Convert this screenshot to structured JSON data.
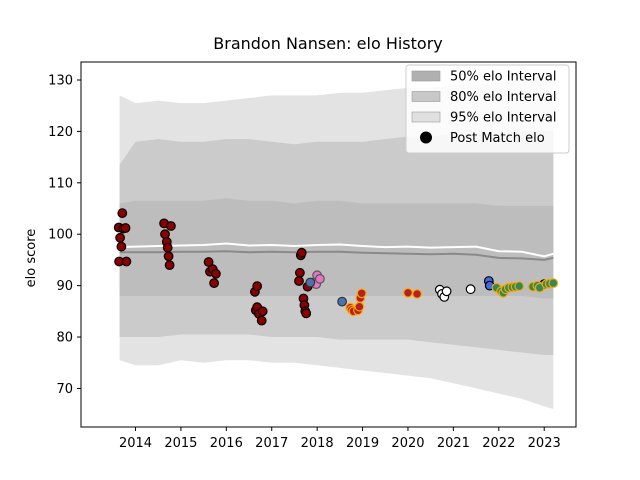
{
  "chart_data": {
    "type": "scatter",
    "title": "Brandon Nansen: elo History",
    "xlabel": "",
    "ylabel": "elo score",
    "xlim": [
      2012.8,
      2023.7
    ],
    "ylim": [
      62.5,
      133.5
    ],
    "x_ticks": [
      2014,
      2015,
      2016,
      2017,
      2018,
      2019,
      2020,
      2021,
      2022,
      2023
    ],
    "y_ticks": [
      70,
      80,
      90,
      100,
      110,
      120,
      130
    ],
    "grid": false,
    "legend_position": "top-right",
    "legend": [
      {
        "label": "50% elo Interval",
        "kind": "band",
        "color": "#b0b0b0"
      },
      {
        "label": "80% elo Interval",
        "kind": "band",
        "color": "#c8c8c8"
      },
      {
        "label": "95% elo Interval",
        "kind": "band",
        "color": "#e0e0e0"
      },
      {
        "label": "Post Match elo",
        "kind": "marker",
        "color": "#000000"
      }
    ],
    "colors": {
      "band95": "#e3e3e3",
      "band80": "#cbcbcb",
      "band50": "#bdbdbd",
      "median_line": "#8a8a8a",
      "mean_line": "#ffffff"
    },
    "intervals": {
      "x": [
        2013.65,
        2014.0,
        2014.5,
        2015.0,
        2015.5,
        2016.0,
        2016.5,
        2017.0,
        2017.5,
        2018.0,
        2018.5,
        2019.0,
        2019.5,
        2020.0,
        2020.5,
        2021.0,
        2021.5,
        2022.0,
        2022.5,
        2023.0,
        2023.2
      ],
      "p95_low": [
        75.5,
        74.5,
        74.5,
        75.5,
        75.0,
        75.5,
        75.5,
        75.0,
        75.0,
        74.5,
        74.0,
        73.5,
        73.0,
        72.5,
        72.0,
        71.0,
        70.0,
        69.0,
        68.0,
        66.5,
        66.0
      ],
      "p80_low": [
        80.0,
        80.0,
        80.0,
        80.5,
        80.5,
        80.5,
        80.5,
        80.0,
        80.0,
        80.0,
        79.5,
        79.5,
        79.5,
        79.5,
        79.0,
        78.5,
        78.0,
        77.5,
        77.0,
        76.5,
        76.5
      ],
      "p50_low": [
        88.0,
        88.0,
        88.0,
        88.0,
        88.0,
        88.0,
        88.0,
        88.0,
        88.0,
        88.0,
        88.0,
        88.0,
        88.0,
        88.0,
        88.0,
        88.0,
        88.0,
        88.0,
        88.0,
        87.5,
        87.5
      ],
      "median": [
        96.5,
        96.5,
        96.5,
        96.6,
        96.6,
        96.7,
        96.5,
        96.6,
        96.5,
        96.6,
        96.6,
        96.4,
        96.3,
        96.2,
        96.1,
        96.2,
        96.0,
        95.4,
        95.3,
        95.0,
        95.4
      ],
      "mean": [
        97.5,
        97.6,
        97.7,
        97.8,
        97.9,
        98.2,
        97.8,
        97.9,
        97.7,
        97.9,
        98.0,
        97.7,
        97.5,
        97.6,
        97.4,
        97.5,
        97.6,
        96.7,
        96.6,
        95.7,
        96.2
      ],
      "p50_high": [
        106.0,
        106.5,
        106.5,
        106.5,
        106.5,
        107.0,
        106.5,
        106.5,
        106.0,
        106.5,
        106.5,
        106.0,
        106.0,
        106.0,
        106.0,
        106.0,
        106.0,
        105.5,
        105.5,
        105.5,
        105.5
      ],
      "p80_high": [
        113.5,
        118.0,
        118.5,
        118.0,
        118.0,
        118.5,
        118.5,
        118.0,
        117.5,
        118.0,
        118.0,
        118.0,
        118.5,
        119.0,
        119.0,
        119.5,
        119.5,
        119.5,
        120.0,
        120.0,
        120.0
      ],
      "p95_high": [
        127.0,
        125.5,
        126.0,
        125.5,
        125.5,
        126.0,
        126.5,
        127.0,
        127.0,
        127.0,
        127.5,
        127.5,
        128.0,
        128.5,
        128.5,
        129.0,
        129.0,
        129.5,
        130.0,
        130.5,
        130.5
      ]
    },
    "series": [
      {
        "name": "Post Match elo",
        "face": "#8b0000",
        "edge": "#000000",
        "points": [
          [
            2013.63,
            101.3
          ],
          [
            2013.66,
            99.3
          ],
          [
            2013.69,
            97.6
          ],
          [
            2013.71,
            104.1
          ],
          [
            2013.73,
            101.1
          ],
          [
            2013.78,
            101.2
          ],
          [
            2013.64,
            94.7
          ],
          [
            2013.8,
            94.7
          ],
          [
            2014.63,
            102.1
          ],
          [
            2014.65,
            100.0
          ],
          [
            2014.69,
            98.5
          ],
          [
            2014.71,
            97.4
          ],
          [
            2014.73,
            95.7
          ],
          [
            2014.75,
            94.0
          ],
          [
            2014.78,
            101.6
          ],
          [
            2015.61,
            94.6
          ],
          [
            2015.64,
            92.7
          ],
          [
            2015.7,
            93.2
          ],
          [
            2015.73,
            90.5
          ],
          [
            2015.77,
            92.3
          ],
          [
            2016.63,
            88.8
          ],
          [
            2016.68,
            89.9
          ],
          [
            2016.65,
            85.2
          ],
          [
            2016.68,
            85.8
          ],
          [
            2016.72,
            84.5
          ],
          [
            2016.78,
            83.2
          ],
          [
            2016.8,
            85.0
          ],
          [
            2017.6,
            90.9
          ],
          [
            2017.62,
            92.5
          ],
          [
            2017.64,
            95.9
          ],
          [
            2017.66,
            96.4
          ],
          [
            2017.7,
            87.5
          ],
          [
            2017.72,
            86.2
          ],
          [
            2017.74,
            85.0
          ],
          [
            2017.76,
            84.6
          ],
          [
            2017.79,
            89.8
          ]
        ]
      },
      {
        "name": "",
        "face": "#e377c2",
        "edge": "#555555",
        "points": [
          [
            2017.92,
            90.6
          ],
          [
            2017.98,
            90.3
          ],
          [
            2018.0,
            92.0
          ],
          [
            2018.06,
            91.3
          ]
        ]
      },
      {
        "name": "",
        "face": "#4c72b0",
        "edge": "#333333",
        "points": [
          [
            2017.85,
            90.6
          ],
          [
            2018.55,
            86.9
          ]
        ]
      },
      {
        "name": "",
        "face": "#b22222",
        "edge": "#ffa500",
        "points": [
          [
            2018.73,
            85.7
          ],
          [
            2018.76,
            85.3
          ],
          [
            2018.8,
            85.0
          ],
          [
            2018.9,
            85.2
          ],
          [
            2018.93,
            85.9
          ],
          [
            2018.95,
            87.6
          ],
          [
            2018.98,
            88.5
          ],
          [
            2020.0,
            88.6
          ],
          [
            2020.2,
            88.4
          ]
        ]
      },
      {
        "name": "",
        "face": "#ffffff",
        "edge": "#000000",
        "points": [
          [
            2020.7,
            89.2
          ],
          [
            2020.75,
            88.4
          ],
          [
            2020.8,
            87.8
          ],
          [
            2020.85,
            88.9
          ],
          [
            2021.38,
            89.3
          ]
        ]
      },
      {
        "name": "",
        "face": "#4169e1",
        "edge": "#000000",
        "points": [
          [
            2021.78,
            90.9
          ],
          [
            2021.8,
            90.0
          ],
          [
            2023.0,
            90.3
          ]
        ]
      },
      {
        "name": "",
        "face": "#2e8b57",
        "edge": "#ffa500",
        "points": [
          [
            2021.95,
            89.6
          ],
          [
            2022.05,
            88.9
          ],
          [
            2022.1,
            88.6
          ],
          [
            2022.15,
            89.3
          ],
          [
            2022.22,
            89.6
          ],
          [
            2022.3,
            89.7
          ],
          [
            2022.37,
            89.8
          ],
          [
            2022.45,
            89.9
          ],
          [
            2022.75,
            89.8
          ],
          [
            2022.85,
            90.0
          ],
          [
            2022.9,
            89.6
          ],
          [
            2023.05,
            90.3
          ],
          [
            2023.12,
            90.4
          ],
          [
            2023.2,
            90.5
          ]
        ]
      }
    ]
  }
}
